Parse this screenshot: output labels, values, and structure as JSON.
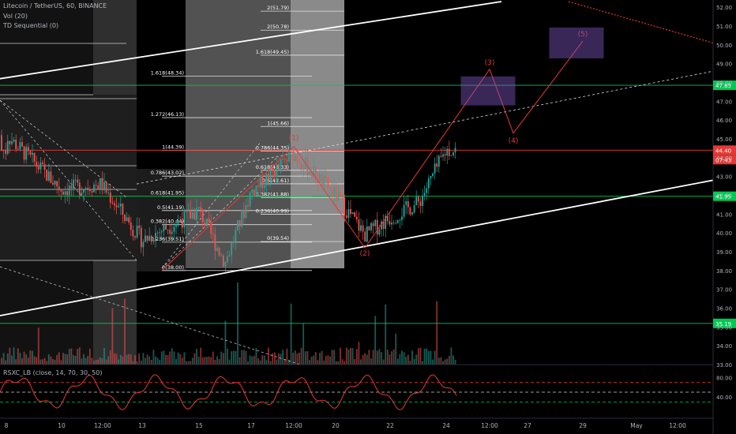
{
  "header": {
    "symbol_line": "Litecoin / TetherUS, 60, BINANCE",
    "indicator_vol": "Vol (20)",
    "indicator_td": "TD Sequential (0)",
    "rsi_label": "RSXC_LB (close, 14, 70, 30, 50)"
  },
  "price_axis": {
    "ticks": [
      "52.00",
      "51.00",
      "50.00",
      "49.00",
      "48.00",
      "47.00",
      "46.00",
      "45.00",
      "44.00",
      "43.00",
      "42.00",
      "41.00",
      "40.00",
      "39.00",
      "38.00",
      "37.00",
      "36.00",
      "35.00",
      "34.00",
      "33.00"
    ],
    "range": [
      33.0,
      52.3
    ]
  },
  "rsi_axis": {
    "ticks": [
      "80.00",
      "40.00"
    ],
    "range": [
      0,
      100
    ]
  },
  "time_axis": {
    "labels": [
      "8",
      "10",
      "12:00",
      "13",
      "15",
      "17",
      "12:00",
      "20",
      "22",
      "24",
      "12:00",
      "27",
      "29",
      "May",
      "12:00"
    ]
  },
  "price_badges": [
    {
      "label": "47.85",
      "color": "#00c853"
    },
    {
      "label": "44.40",
      "color": "#e53935"
    },
    {
      "label": "07:43",
      "color": "#e53935"
    },
    {
      "label": "41.95",
      "color": "#00c853"
    },
    {
      "label": "35.19",
      "color": "#00c853"
    }
  ],
  "fib_left": [
    "1.618(48.34)",
    "1.272(46.13)",
    "1(44.39)",
    "0.786(43.02)",
    "0.618(41.95)",
    "0.5(41.19)",
    "0.382(40.44)",
    "0.236(39.51)",
    "0(38.00)"
  ],
  "fib_right": [
    "2(51.79)",
    "2(50.78)",
    "1.618(49.45)",
    "1(45.66)",
    "0.786(44.35)",
    "0.618(43.33)",
    "0.5(42.61)",
    "0.382(41.88)",
    "0.236(40.99)",
    "0(39.54)"
  ],
  "waves": [
    "(1)",
    "(2)",
    "(3)",
    "(4)",
    "(5)"
  ],
  "colors": {
    "bull": "#26a69a",
    "bear": "#ef5350",
    "green_line": "#00c853",
    "red_line": "#e53935",
    "wave": "#e53935",
    "zone": "#7e57c2"
  },
  "chart_data": {
    "type": "candlestick",
    "title": "Litecoin / TetherUS, 60, BINANCE",
    "ylabel": "",
    "xlabel": "",
    "ylim": [
      33.0,
      52.3
    ],
    "horizontal_levels": [
      {
        "value": 47.85,
        "color": "green"
      },
      {
        "value": 44.4,
        "color": "red"
      },
      {
        "value": 41.95,
        "color": "green"
      },
      {
        "value": 35.19,
        "color": "green"
      }
    ],
    "close_series": [
      {
        "date": "8",
        "close": 45.2
      },
      {
        "date": "10",
        "close": 42.3
      },
      {
        "date": "12",
        "close": 42.6
      },
      {
        "date": "13",
        "close": 39.6
      },
      {
        "date": "15",
        "close": 41.2
      },
      {
        "date": "16",
        "close": 38.4
      },
      {
        "date": "17",
        "close": 42.2
      },
      {
        "date": "19",
        "close": 44.2
      },
      {
        "date": "20",
        "close": 42.0
      },
      {
        "date": "21",
        "close": 39.9
      },
      {
        "date": "22",
        "close": 40.8
      },
      {
        "date": "23",
        "close": 41.6
      },
      {
        "date": "24",
        "close": 44.4
      }
    ],
    "wave_projection": [
      {
        "label": "(1)",
        "date": "19",
        "price": 44.6
      },
      {
        "label": "(2)",
        "date": "21",
        "price": 39.2
      },
      {
        "label": "(3)",
        "date": "25",
        "price": 48.7
      },
      {
        "label": "(4)",
        "date": "26",
        "price": 45.3
      },
      {
        "label": "(5)",
        "date": "29",
        "price": 50.2
      }
    ],
    "rsi": {
      "name": "RSXC_LB",
      "levels": [
        70,
        50,
        30
      ],
      "ylim": [
        0,
        100
      ]
    }
  }
}
